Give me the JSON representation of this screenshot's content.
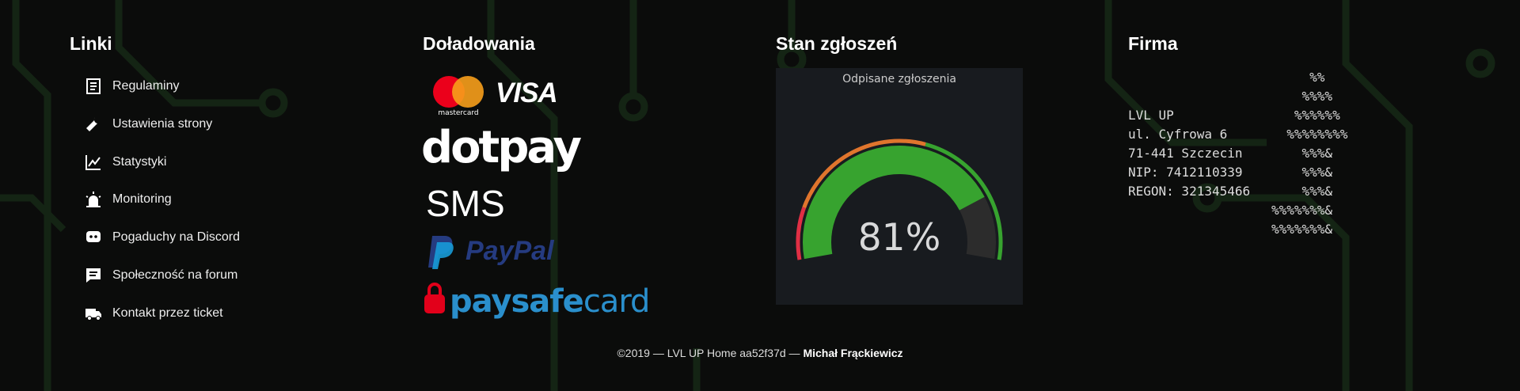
{
  "links": {
    "title": "Linki",
    "items": [
      "Regulaminy",
      "Ustawienia strony",
      "Statystyki",
      "Monitoring",
      "Pogaduchy na Discord",
      "Społeczność na forum",
      "Kontakt przez ticket"
    ]
  },
  "payments": {
    "title": "Doładowania",
    "mastercard": "mastercard",
    "visa": "VISA",
    "dotpay": "dotpay",
    "sms": "SMS",
    "paypal": "PayPal",
    "paysafe": "paysafe",
    "paysafe_card": "card"
  },
  "status": {
    "title": "Stan zgłoszeń",
    "gauge": {
      "title": "Odpisane zgłoszenia",
      "value": 81,
      "label": "81%",
      "range": [
        0,
        100
      ]
    }
  },
  "company": {
    "title": "Firma",
    "lines": [
      "LVL UP",
      "ul. Cyfrowa 6",
      "71-441 Szczecin",
      "NIP: 7412110339",
      "REGON: 321345466"
    ],
    "art": [
      "     %%",
      "    %%%%",
      "   %%%%%%",
      "  %%%%%%%%",
      "    %%%&",
      "    %%%&",
      "    %%%&",
      "%%%%%%%&",
      "%%%%%%%&"
    ]
  },
  "footer": {
    "text": "©2019 — LVL UP Home aa52f37d — ",
    "author": "Michał Frąckiewicz"
  }
}
